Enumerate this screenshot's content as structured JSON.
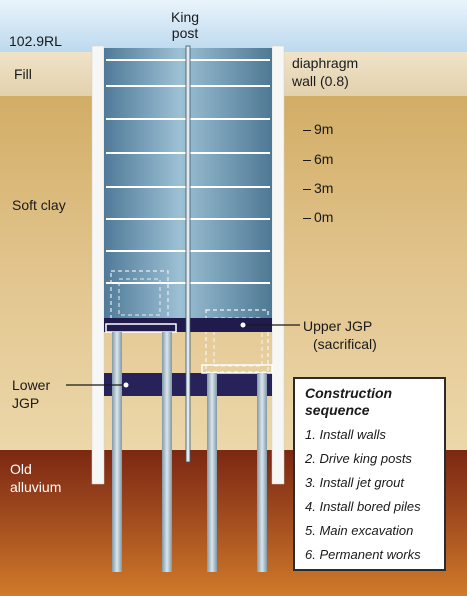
{
  "labels": {
    "rl": "102.9RL",
    "king_post": [
      "King",
      "post"
    ],
    "fill": "Fill",
    "diaphragm_wall": [
      "diaphragm",
      "wall (0.8)"
    ],
    "soft_clay": "Soft clay",
    "upper_jgp": [
      "Upper JGP",
      "(sacrifical)"
    ],
    "lower_jgp": [
      "Lower",
      "JGP"
    ],
    "old_alluvium": [
      "Old",
      "alluvium"
    ]
  },
  "depths": [
    "9m",
    "6m",
    "3m",
    "0m"
  ],
  "sequence": {
    "title": [
      "Construction",
      "sequence"
    ],
    "steps": [
      "1. Install walls",
      "2. Drive king posts",
      "3. Install jet grout",
      "4. Install bored piles",
      "5. Main excavation",
      "6. Permanent works"
    ]
  },
  "colors": {
    "sky": "#cfe6f4",
    "fill_layer": "#e9dcc0",
    "soft_clay": "#d9b877",
    "alluvium": "#8c3a18",
    "excavation": "#6f99b4",
    "jgp": "#1e1a4a",
    "wall": "#ffffff",
    "pile": "#a9bdc8"
  }
}
